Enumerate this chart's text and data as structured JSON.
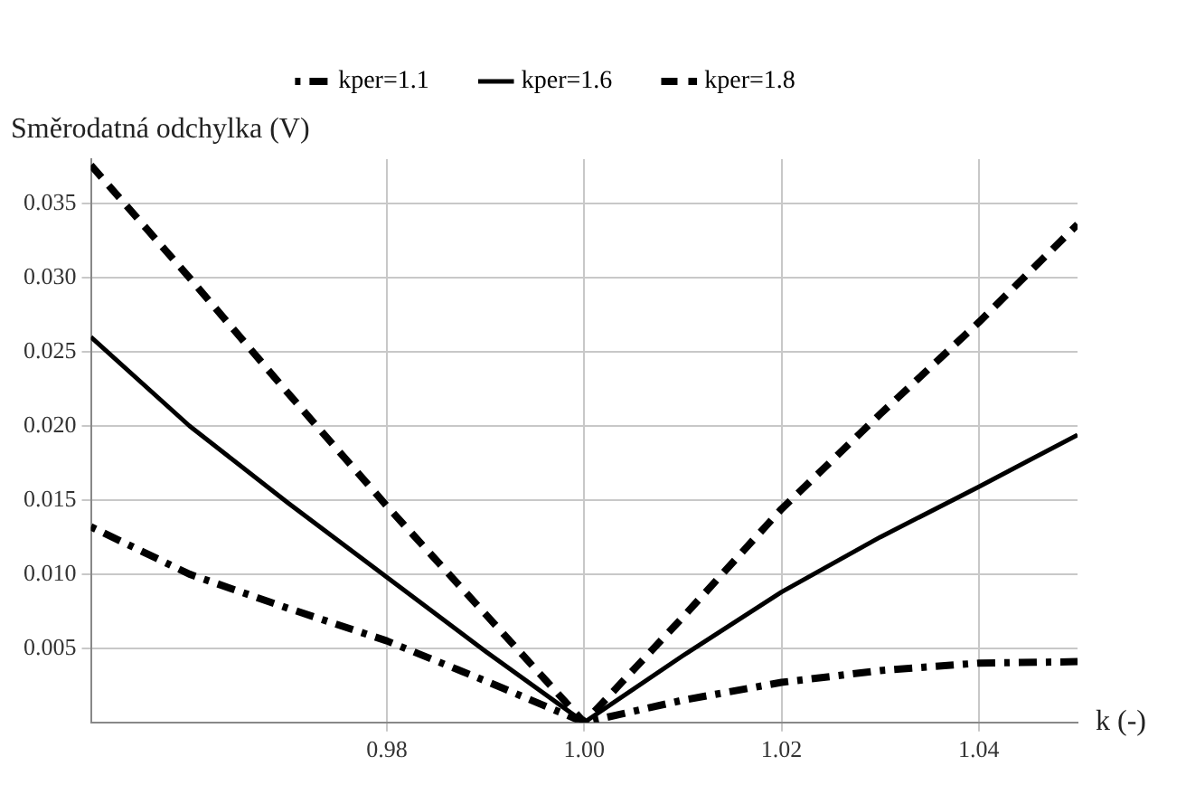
{
  "chart_data": {
    "type": "line",
    "xlabel": "k (-)",
    "ylabel": "Směrodatná odchylka (V)",
    "x": [
      0.95,
      0.96,
      0.97,
      0.98,
      0.99,
      1.0,
      1.01,
      1.02,
      1.03,
      1.04,
      1.05
    ],
    "series": [
      {
        "name": "kper=1.1",
        "color": "#000000",
        "line_style": "dashdot",
        "values": [
          0.0132,
          0.01,
          0.0077,
          0.0055,
          0.0028,
          0,
          0.0015,
          0.0027,
          0.0035,
          0.004,
          0.0041
        ]
      },
      {
        "name": "kper=1.6",
        "color": "#000000",
        "line_style": "solid",
        "values": [
          0.026,
          0.02,
          0.0148,
          0.0098,
          0.0048,
          0,
          0.0045,
          0.0088,
          0.0125,
          0.0159,
          0.0194
        ]
      },
      {
        "name": "kper=1.8",
        "color": "#000000",
        "line_style": "dashed",
        "values": [
          0.0376,
          0.03,
          0.0222,
          0.0146,
          0.0073,
          0,
          0.0071,
          0.0144,
          0.0208,
          0.027,
          0.0336
        ]
      }
    ],
    "xlim": [
      0.95,
      1.05
    ],
    "ylim": [
      0,
      0.038
    ],
    "xticks": [
      0.98,
      {
        "value": 1.0,
        "label": "1.00"
      },
      1.02,
      1.04
    ],
    "yticks": [
      0.005,
      {
        "value": 0.01,
        "label": "0.010"
      },
      0.015,
      {
        "value": 0.02,
        "label": "0.020"
      },
      0.025,
      {
        "value": 0.03,
        "label": "0.030"
      },
      0.035
    ],
    "grid": true,
    "legend": "top",
    "marker": "none"
  }
}
